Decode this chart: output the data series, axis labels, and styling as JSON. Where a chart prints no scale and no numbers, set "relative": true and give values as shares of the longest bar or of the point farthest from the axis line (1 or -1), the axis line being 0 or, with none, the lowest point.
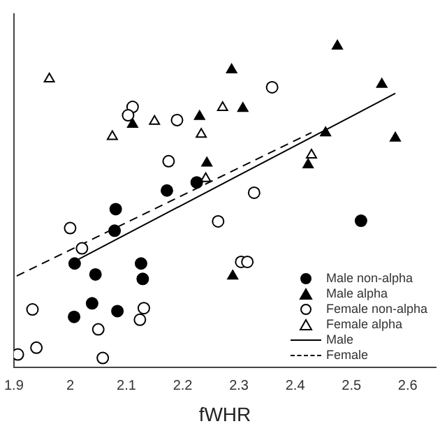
{
  "chart_data": {
    "type": "scatter",
    "xlabel": "fWHR",
    "relative": true,
    "xlim": [
      1.9,
      2.65
    ],
    "xticks": [
      {
        "value": 1.9,
        "label": "1.9"
      },
      {
        "value": 2,
        "label": "2"
      },
      {
        "value": 2.1,
        "label": "2.1"
      },
      {
        "value": 2.2,
        "label": "2.2"
      },
      {
        "value": 2.3,
        "label": "2.3"
      },
      {
        "value": 2.4,
        "label": "2.4"
      },
      {
        "value": 2.5,
        "label": "2.5"
      },
      {
        "value": 2.6,
        "label": "2.6"
      }
    ],
    "grid": false,
    "legend": "bottom right",
    "series": [
      {
        "name": "Male non-alpha",
        "marker": "circle",
        "color": "#000000",
        "x": [
          2.081,
          2.079,
          2.008,
          2.045,
          2.126,
          2.129,
          2.039,
          2.007,
          2.084,
          2.517,
          2.172,
          2.225
        ],
        "values": [
          0.493,
          0.426,
          0.324,
          0.29,
          0.324,
          0.276,
          0.2,
          0.158,
          0.176,
          0.457,
          0.551,
          0.576
        ]
      },
      {
        "name": "Male alpha",
        "marker": "triangle",
        "color": "#000000",
        "x": [
          2.111,
          2.23,
          2.287,
          2.307,
          2.243,
          2.475,
          2.554,
          2.578,
          2.454,
          2.423,
          2.289
        ],
        "values": [
          0.757,
          0.781,
          0.926,
          0.806,
          0.636,
          1.0,
          0.881,
          0.714,
          0.73,
          0.631,
          0.285
        ]
      },
      {
        "name": "Female non-alpha",
        "marker": "circle",
        "color": "#ffffff",
        "x": [
          2.111,
          2.103,
          2.19,
          2.175,
          2.359,
          2.327,
          2.0,
          2.021,
          2.263,
          2.304,
          2.315,
          1.933,
          2.131,
          2.124,
          2.05,
          1.94,
          1.907,
          2.058
        ],
        "values": [
          0.811,
          0.785,
          0.77,
          0.642,
          0.872,
          0.544,
          0.434,
          0.371,
          0.455,
          0.329,
          0.329,
          0.181,
          0.185,
          0.149,
          0.119,
          0.062,
          0.041,
          0.03
        ]
      },
      {
        "name": "Female alpha",
        "marker": "triangle",
        "color": "#ffffff",
        "x": [
          1.963,
          2.075,
          2.15,
          2.233,
          2.271,
          2.241,
          2.429
        ],
        "values": [
          0.898,
          0.719,
          0.766,
          0.726,
          0.809,
          0.588,
          0.661
        ]
      },
      {
        "name": "Male",
        "type": "line",
        "marker": "none",
        "line_style": "solid",
        "color": "#000000",
        "x": [
          2.008,
          2.578
        ],
        "values": [
          0.331,
          0.853
        ]
      },
      {
        "name": "Female",
        "type": "line",
        "marker": "none",
        "line_style": "dashed",
        "color": "#000000",
        "x": [
          1.905,
          2.429
        ],
        "values": [
          0.285,
          0.731
        ]
      }
    ]
  }
}
